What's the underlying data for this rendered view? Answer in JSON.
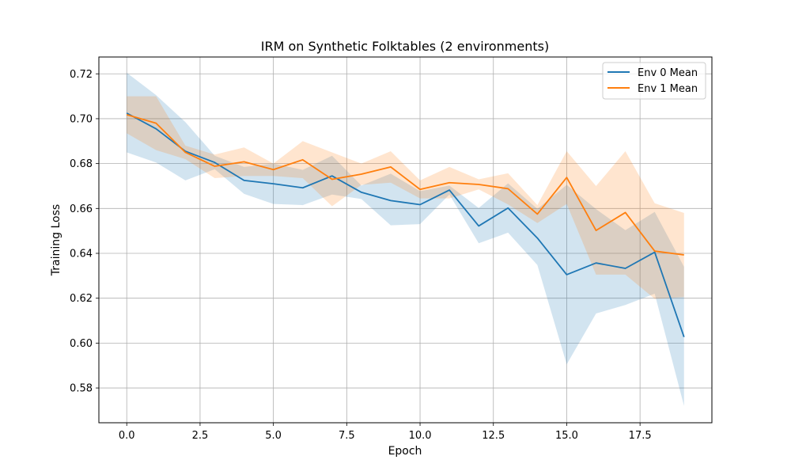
{
  "chart_data": {
    "type": "line",
    "title": "IRM on Synthetic Folktables (2 environments)",
    "xlabel": "Epoch",
    "ylabel": "Training Loss",
    "xlim": [
      -0.95,
      19.95
    ],
    "ylim": [
      0.5645,
      0.7275
    ],
    "xticks": [
      0.0,
      2.5,
      5.0,
      7.5,
      10.0,
      12.5,
      15.0,
      17.5
    ],
    "xtick_labels": [
      "0.0",
      "2.5",
      "5.0",
      "7.5",
      "10.0",
      "12.5",
      "15.0",
      "17.5"
    ],
    "yticks": [
      0.58,
      0.6,
      0.62,
      0.64,
      0.66,
      0.68,
      0.7,
      0.72
    ],
    "ytick_labels": [
      "0.58",
      "0.60",
      "0.62",
      "0.64",
      "0.66",
      "0.68",
      "0.70",
      "0.72"
    ],
    "grid": true,
    "legend_position": "top-right",
    "x": [
      0,
      1,
      2,
      3,
      4,
      5,
      6,
      7,
      8,
      9,
      10,
      11,
      12,
      13,
      14,
      15,
      16,
      17,
      18,
      19
    ],
    "series": [
      {
        "name": "Env 0 Mean",
        "color": "#1f77b4",
        "band_color": "#1f77b4",
        "values": [
          0.7025,
          0.6955,
          0.6855,
          0.6805,
          0.6725,
          0.671,
          0.6692,
          0.6745,
          0.6672,
          0.6635,
          0.6617,
          0.6682,
          0.6522,
          0.6602,
          0.6468,
          0.6305,
          0.6357,
          0.6333,
          0.6405,
          0.6027
        ],
        "upper": [
          0.7205,
          0.7105,
          0.6985,
          0.6835,
          0.6785,
          0.68,
          0.6772,
          0.6835,
          0.6702,
          0.6755,
          0.6677,
          0.6702,
          0.6602,
          0.6712,
          0.6598,
          0.6705,
          0.6597,
          0.6503,
          0.6585,
          0.634
        ],
        "lower": [
          0.685,
          0.6805,
          0.6725,
          0.6775,
          0.6665,
          0.662,
          0.6615,
          0.6662,
          0.6642,
          0.6525,
          0.653,
          0.6662,
          0.6445,
          0.6492,
          0.6348,
          0.5905,
          0.6132,
          0.617,
          0.622,
          0.572
        ]
      },
      {
        "name": "Env 1 Mean",
        "color": "#ff7f0e",
        "band_color": "#ff7f0e",
        "values": [
          0.7018,
          0.698,
          0.685,
          0.6788,
          0.6808,
          0.6773,
          0.6817,
          0.673,
          0.6753,
          0.6785,
          0.6685,
          0.6715,
          0.6707,
          0.6688,
          0.6575,
          0.6738,
          0.6502,
          0.6582,
          0.641,
          0.6393
        ],
        "upper": [
          0.71,
          0.71,
          0.688,
          0.684,
          0.6872,
          0.68,
          0.69,
          0.685,
          0.68,
          0.6855,
          0.6725,
          0.6785,
          0.673,
          0.6757,
          0.6615,
          0.6855,
          0.67,
          0.6855,
          0.6623,
          0.658
        ],
        "lower": [
          0.6935,
          0.686,
          0.682,
          0.6735,
          0.6745,
          0.6745,
          0.6735,
          0.661,
          0.6705,
          0.6715,
          0.6645,
          0.6645,
          0.6685,
          0.6618,
          0.6535,
          0.662,
          0.6305,
          0.6305,
          0.6197,
          0.6205
        ]
      }
    ]
  }
}
